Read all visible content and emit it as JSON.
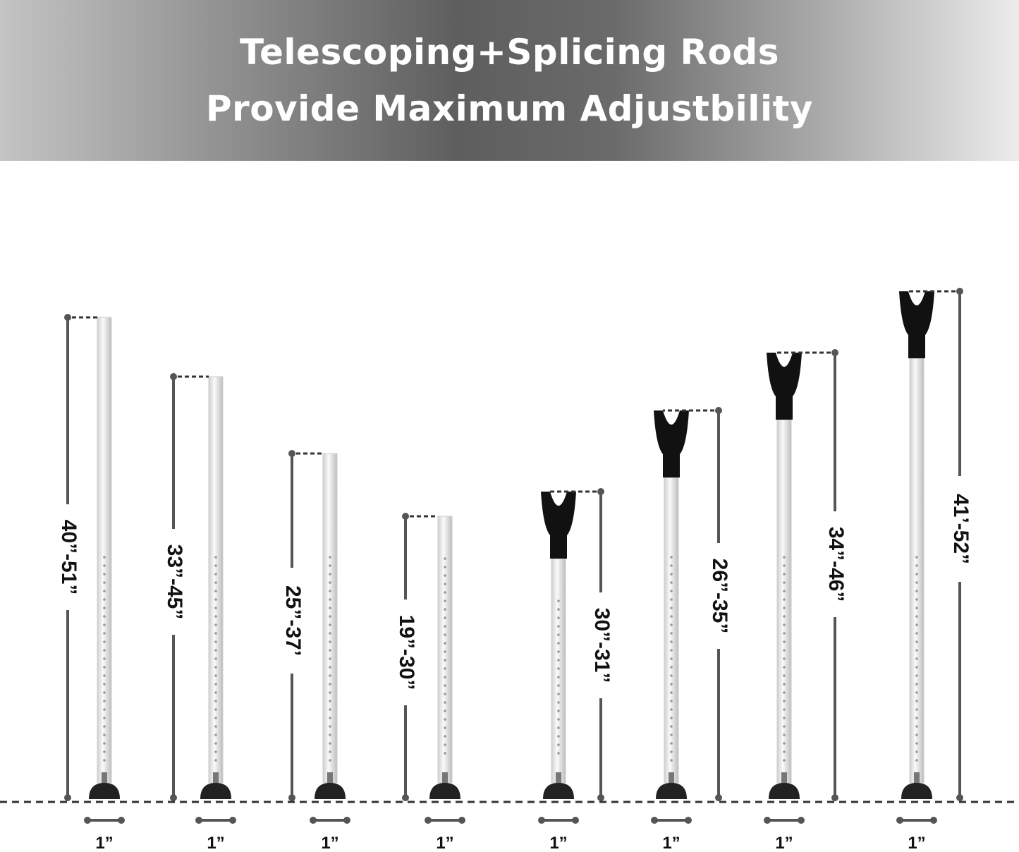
{
  "header": {
    "line1": "Telescoping+Splicing Rods",
    "line2": "Provide Maximum Adjustbility"
  },
  "rods": [
    {
      "range": "40”-51”",
      "width": "1”",
      "top": "flat"
    },
    {
      "range": "33”-45”",
      "width": "1”",
      "top": "flat"
    },
    {
      "range": "25”-37’",
      "width": "1”",
      "top": "flat"
    },
    {
      "range": "19”-30”",
      "width": "1”",
      "top": "flat"
    },
    {
      "range": "30”-31”",
      "width": "1”",
      "top": "v-cradle"
    },
    {
      "range": "26”-35”",
      "width": "1”",
      "top": "v-cradle"
    },
    {
      "range": "34”-46”",
      "width": "1”",
      "top": "v-cradle"
    },
    {
      "range": "41’-52”",
      "width": "1”",
      "top": "v-cradle"
    }
  ],
  "colors": {
    "dimension_line": "#555555",
    "cap": "#111111",
    "rod": "#eeeeee"
  }
}
